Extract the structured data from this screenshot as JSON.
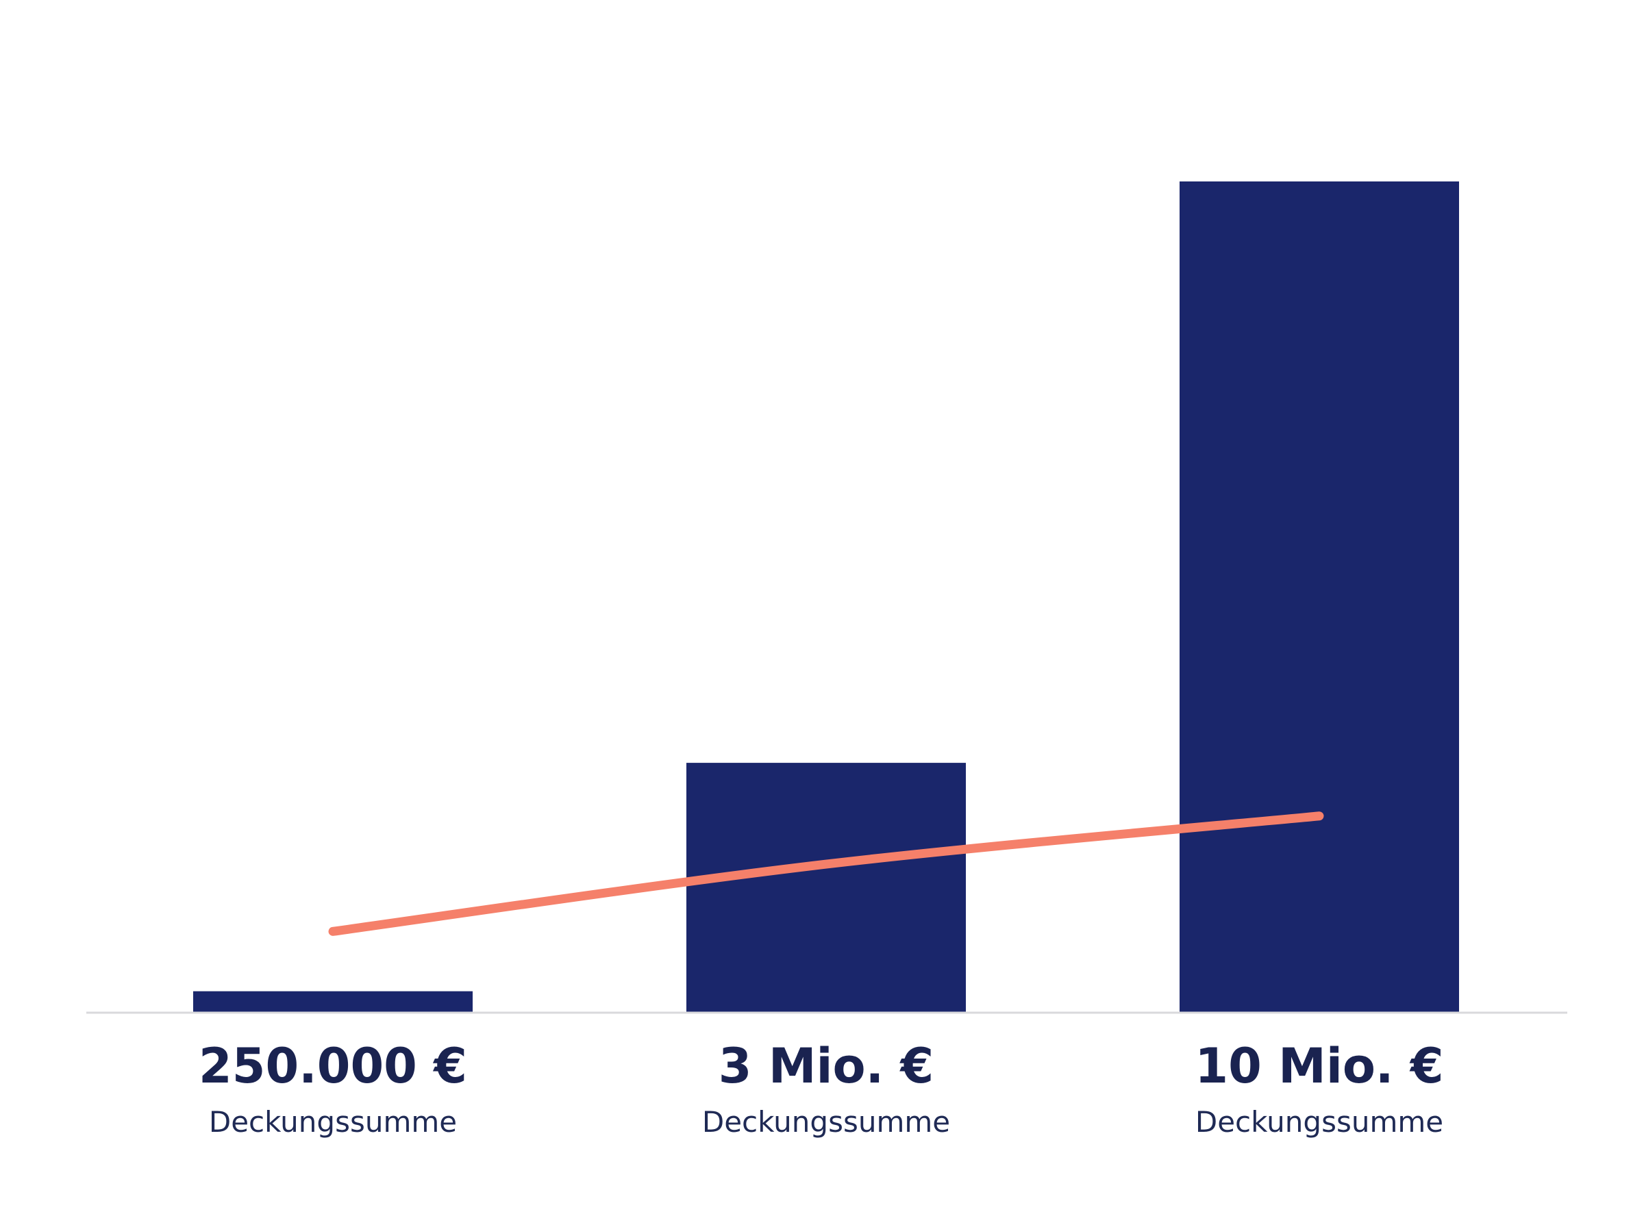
{
  "colors": {
    "background": "#ffffff",
    "bar": "#1a266b",
    "line": "#f5806a",
    "baseline": "#d9d9dc",
    "label_primary": "#1a2350",
    "label_secondary": "#1f2a55"
  },
  "chart_data": {
    "type": "bar",
    "categories": [
      "250.000 €",
      "3 Mio. €",
      "10 Mio. €"
    ],
    "sublabels": [
      "Deckungssumme",
      "Deckungssumme",
      "Deckungssumme"
    ],
    "series": [
      {
        "type": "bar",
        "values": [
          0.25,
          3,
          10
        ]
      },
      {
        "type": "line",
        "values": [
          0.97,
          1.78,
          2.36
        ]
      }
    ],
    "title": "",
    "xlabel": "",
    "ylabel": "",
    "ylim": [
      0,
      10
    ],
    "grid": false,
    "legend": "none"
  }
}
